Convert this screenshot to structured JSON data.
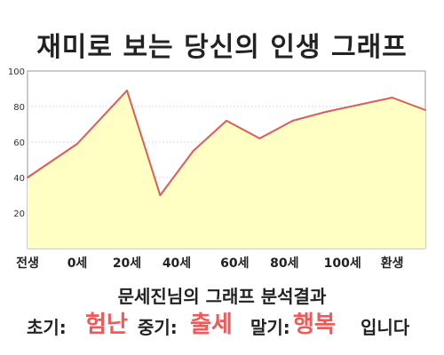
{
  "title": "재미로 보는 당신의 인생 그래프",
  "subtitle": "문세진님의 그래프 분석결과",
  "result": {
    "early_label": "초기:",
    "early_value": "험난",
    "middle_label": "중기:",
    "middle_value": "출세",
    "late_label": "말기:",
    "late_value": "행복",
    "ending": "입니다"
  },
  "colors": {
    "line": "#e05a5a",
    "fill": "#ffffc4",
    "accent": "#ee5a5a"
  },
  "chart_data": {
    "type": "area",
    "x": [
      0,
      6,
      12,
      16,
      20,
      24,
      28,
      32,
      36,
      40,
      44,
      48
    ],
    "values": [
      40,
      59,
      89,
      30,
      55,
      72,
      62,
      72,
      77,
      81,
      85,
      78
    ],
    "xticks": [
      {
        "pos": 0,
        "label": "전생"
      },
      {
        "pos": 6,
        "label": "0세"
      },
      {
        "pos": 12,
        "label": "20세"
      },
      {
        "pos": 18,
        "label": "40세"
      },
      {
        "pos": 25,
        "label": "60세"
      },
      {
        "pos": 31,
        "label": "80세"
      },
      {
        "pos": 38,
        "label": "100세"
      },
      {
        "pos": 44,
        "label": "환생"
      }
    ],
    "yticks": [
      20,
      40,
      60,
      80,
      100
    ],
    "ylim": [
      0,
      100
    ],
    "xlim": [
      0,
      48
    ],
    "grid": true
  }
}
